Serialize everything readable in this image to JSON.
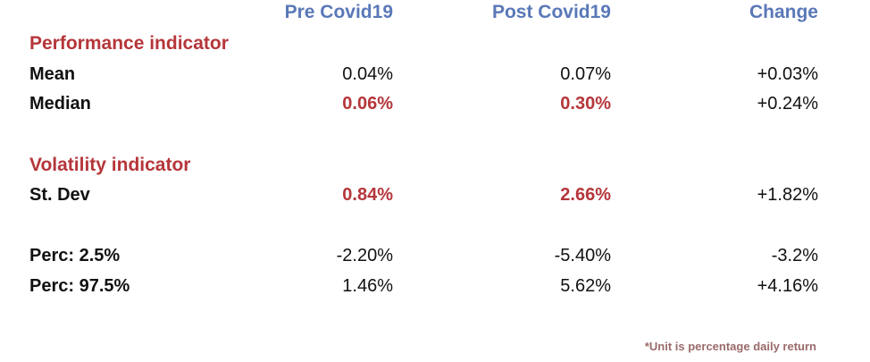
{
  "headers": {
    "pre": "Pre Covid19",
    "post": "Post Covid19",
    "change": "Change"
  },
  "sections": {
    "performance": "Performance indicator",
    "volatility": "Volatility indicator"
  },
  "rows": {
    "mean": {
      "label": "Mean",
      "pre": "0.04%",
      "post": "0.07%",
      "change": "+0.03%"
    },
    "median": {
      "label": "Median",
      "pre": "0.06%",
      "post": "0.30%",
      "change": "+0.24%"
    },
    "stdev": {
      "label": "St. Dev",
      "pre": "0.84%",
      "post": "2.66%",
      "change": "+1.82%"
    },
    "perc25": {
      "label": "Perc: 2.5%",
      "pre": "-2.20%",
      "post": "-5.40%",
      "change": "-3.2%"
    },
    "perc975": {
      "label": "Perc: 97.5%",
      "pre": "1.46%",
      "post": "5.62%",
      "change": "+4.16%"
    }
  },
  "footnote": "*Unit is percentage daily return",
  "colors": {
    "header": "#5a78b8",
    "highlight": "#b5363a",
    "text": "#111111"
  }
}
